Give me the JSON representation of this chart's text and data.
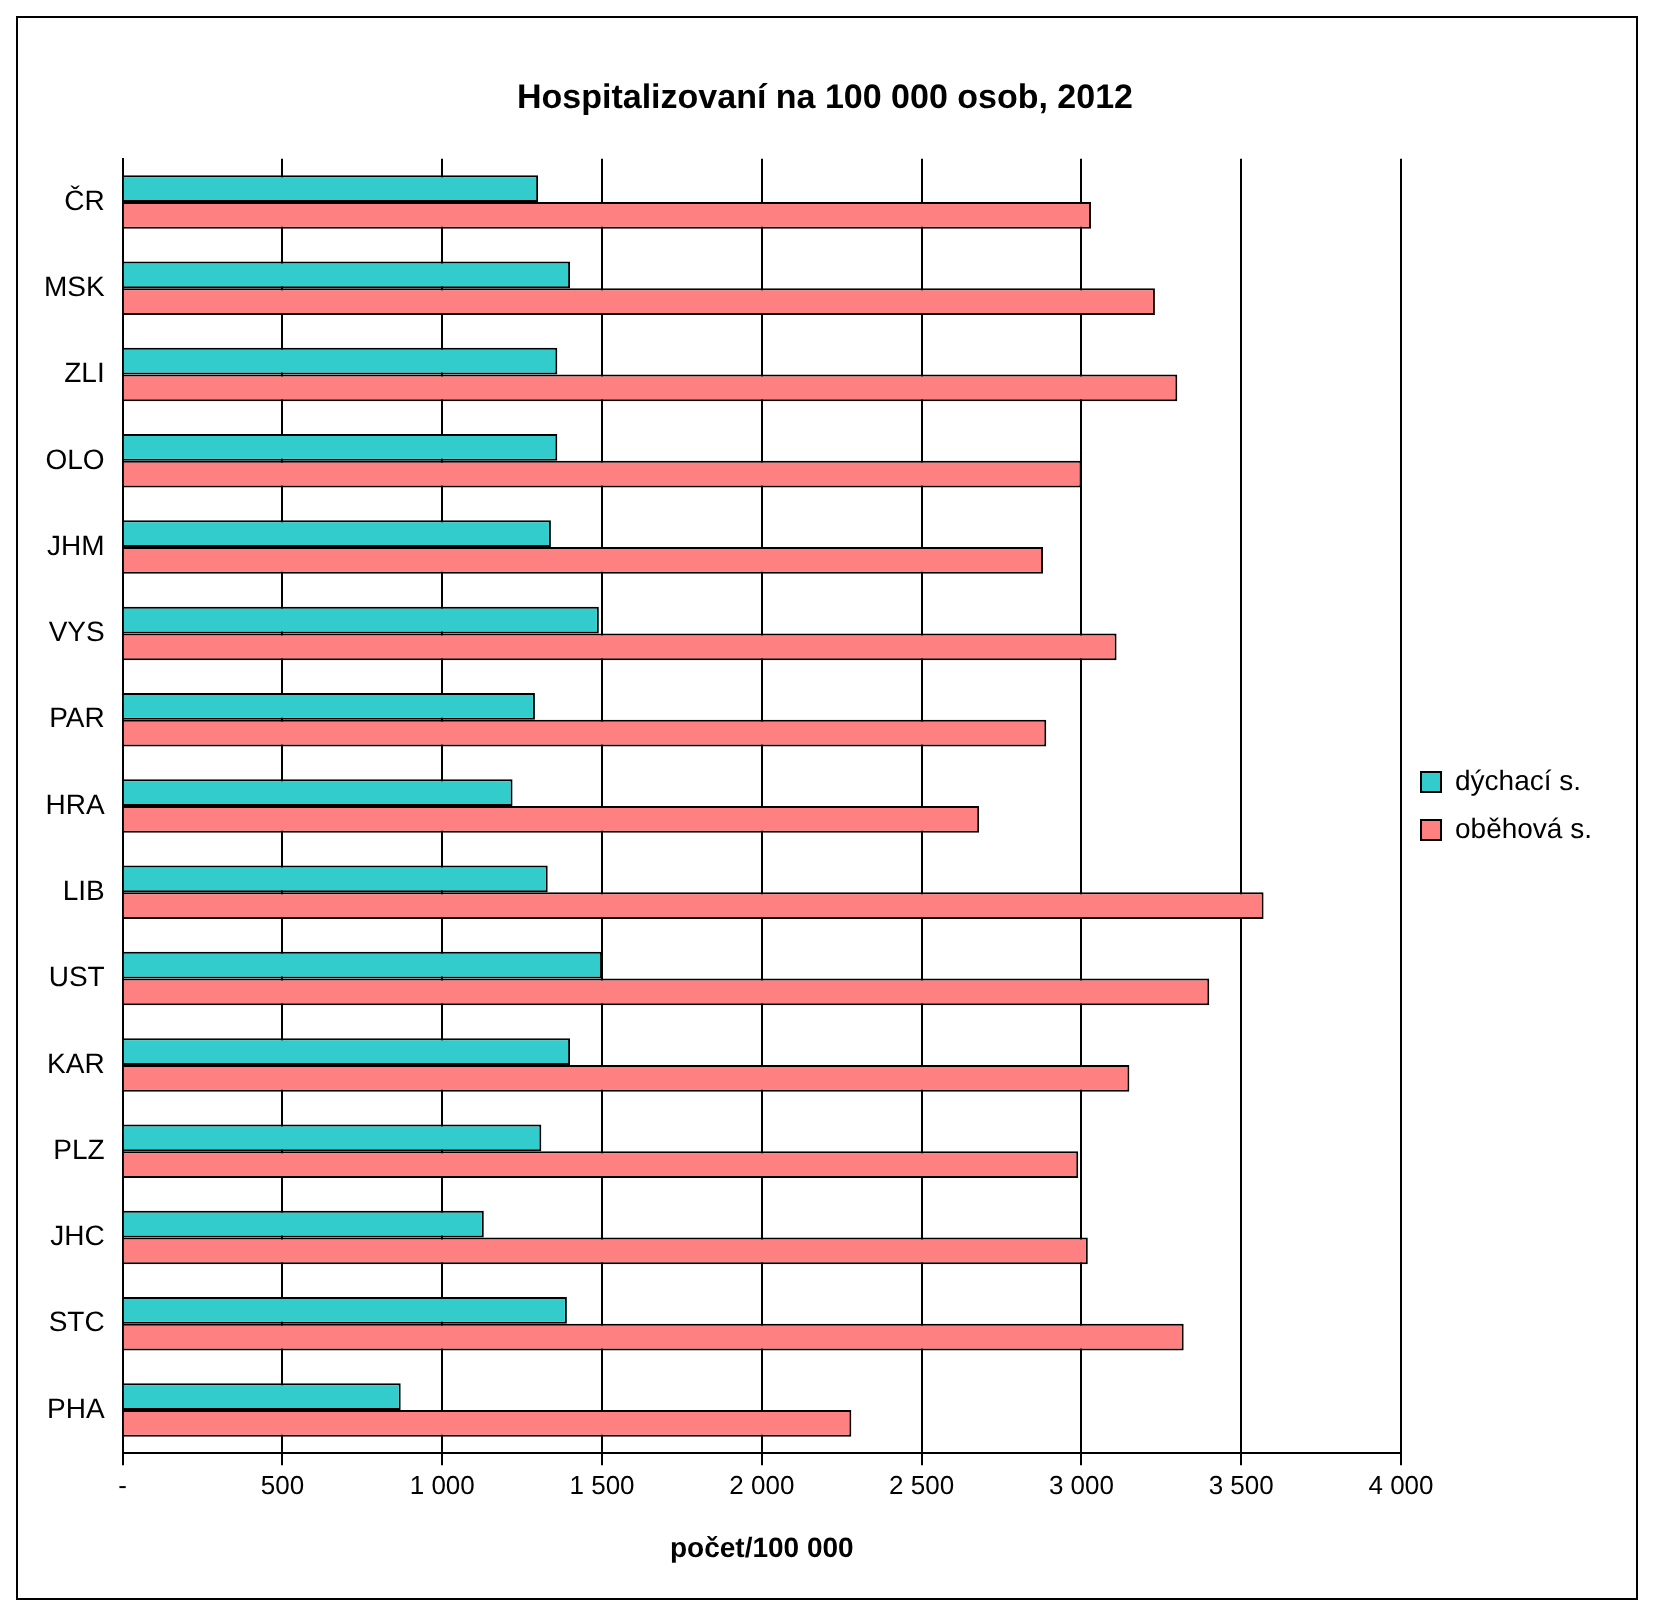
{
  "chart_data": {
    "type": "bar",
    "orientation": "horizontal",
    "title": "Hospitalizovaní na 100 000 osob, 2012",
    "xlabel": "počet/100 000",
    "categories": [
      "ČR",
      "MSK",
      "ZLI",
      "OLO",
      "JHM",
      "VYS",
      "PAR",
      "HRA",
      "LIB",
      "UST",
      "KAR",
      "PLZ",
      "JHC",
      "STC",
      "PHA"
    ],
    "series": [
      {
        "name": "dýchací s.",
        "color": "#33cccc",
        "values": [
          1300,
          1400,
          1360,
          1360,
          1340,
          1490,
          1290,
          1220,
          1330,
          1500,
          1400,
          1310,
          1130,
          1390,
          870
        ]
      },
      {
        "name": "oběhová s.",
        "color": "#ff8080",
        "values": [
          3030,
          3230,
          3300,
          3000,
          2880,
          3110,
          2890,
          2680,
          3570,
          3400,
          3150,
          2990,
          3020,
          3320,
          2280
        ]
      }
    ],
    "xlim": [
      0,
      4000
    ],
    "xticks": [
      {
        "value": 0,
        "label": "-"
      },
      500,
      {
        "value": 1000,
        "label": "1 000"
      },
      {
        "value": 1500,
        "label": "1 500"
      },
      {
        "value": 2000,
        "label": "2 000"
      },
      {
        "value": 2500,
        "label": "2 500"
      },
      {
        "value": 3000,
        "label": "3 000"
      },
      {
        "value": 3500,
        "label": "3 500"
      },
      {
        "value": 4000,
        "label": "4 000"
      }
    ],
    "grid": "x",
    "legend": "right"
  }
}
